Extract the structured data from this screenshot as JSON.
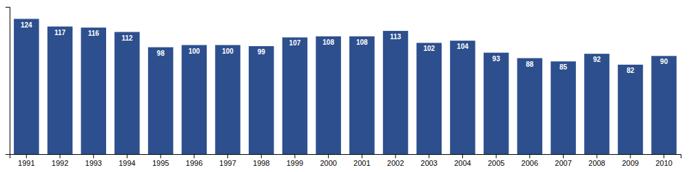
{
  "chart_data": {
    "type": "bar",
    "categories": [
      "1991",
      "1992",
      "1993",
      "1994",
      "1995",
      "1996",
      "1997",
      "1998",
      "1999",
      "2000",
      "2001",
      "2002",
      "2003",
      "2004",
      "2005",
      "2006",
      "2007",
      "2008",
      "2009",
      "2010"
    ],
    "values": [
      124,
      117,
      116,
      112,
      98,
      100,
      100,
      99,
      107,
      108,
      108,
      113,
      102,
      104,
      93,
      88,
      85,
      92,
      82,
      90
    ],
    "color": "#2d4f8e",
    "ylim": [
      0,
      135
    ],
    "grid": false,
    "data_labels": true,
    "tick_labels": "x"
  }
}
